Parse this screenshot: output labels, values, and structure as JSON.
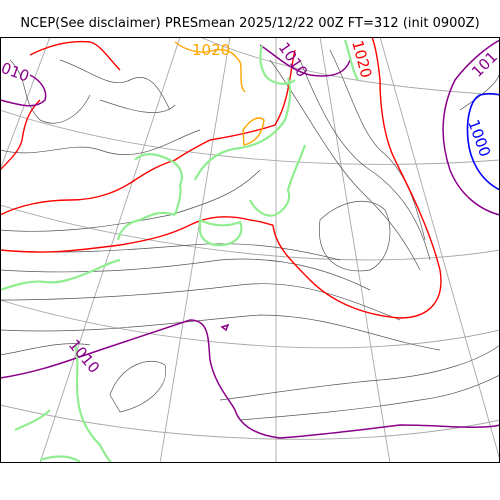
{
  "title": "NCEP(See disclaimer) PRESmean 2025/12/22 00Z FT=312 (init 0900Z)",
  "contour_labels": {
    "nw": "010",
    "top_center": "1020",
    "top_mid": "1010",
    "top_right": "1020",
    "east_low": "1000",
    "east_edge": "101",
    "southwest": "1010"
  },
  "colors": {
    "isobar": "#555555",
    "isobar_1020": "#ff0000",
    "isobar_1010": "#8b008b",
    "isobar_1000": "#0000ff",
    "isobar_1030": "#ffa500",
    "coastline": "#90ee90",
    "graticule": "#a8a8a8"
  }
}
